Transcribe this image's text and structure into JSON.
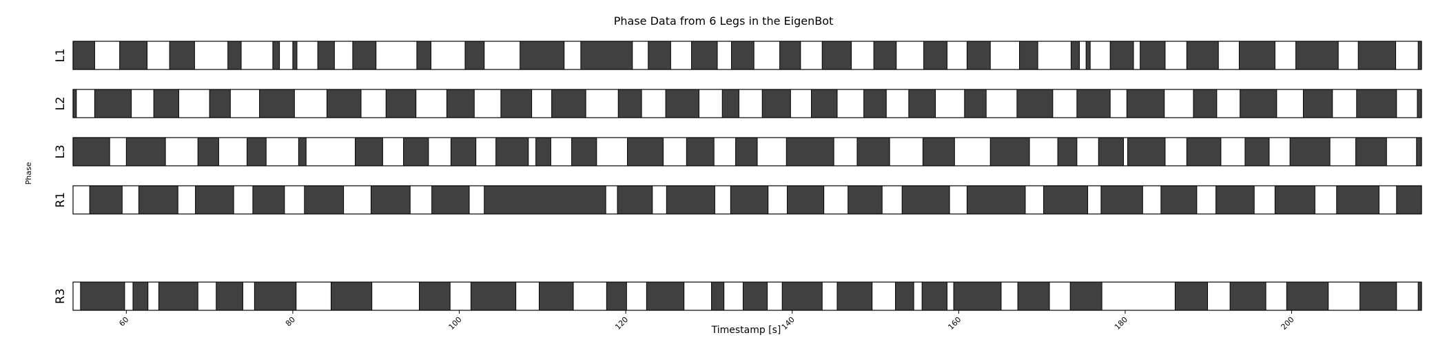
{
  "chart_data": {
    "type": "gait-phase",
    "title": "Phase Data from 6 Legs in the EigenBot",
    "xlabel": "Timestamp [s]",
    "ylabel": "Phase",
    "xlim": [
      53.6,
      215.6
    ],
    "xticks": [
      60,
      80,
      100,
      120,
      140,
      160,
      180,
      200
    ],
    "colors": {
      "dark": "#404040",
      "light": "#ffffff",
      "edge": "#000000"
    },
    "rows": [
      {
        "label": "L1",
        "slot": 0,
        "dark": [
          [
            53.6,
            56.2
          ],
          [
            59.2,
            62.5
          ],
          [
            65.2,
            68.2
          ],
          [
            72.2,
            73.8
          ],
          [
            77.6,
            78.4
          ],
          [
            80.0,
            80.5
          ],
          [
            83.0,
            85.0
          ],
          [
            87.2,
            90.0
          ],
          [
            94.9,
            96.6
          ],
          [
            100.7,
            103.0
          ],
          [
            107.3,
            112.6
          ],
          [
            114.6,
            120.8
          ],
          [
            122.7,
            125.4
          ],
          [
            127.9,
            131.0
          ],
          [
            132.7,
            135.4
          ],
          [
            138.5,
            141.0
          ],
          [
            143.6,
            147.1
          ],
          [
            149.8,
            152.5
          ],
          [
            155.8,
            158.6
          ],
          [
            161.0,
            163.8
          ],
          [
            167.3,
            169.5
          ],
          [
            173.5,
            174.5
          ],
          [
            175.3,
            175.8
          ],
          [
            178.2,
            181.0
          ],
          [
            181.8,
            184.8
          ],
          [
            187.4,
            191.2
          ],
          [
            193.7,
            198.0
          ],
          [
            200.5,
            205.6
          ],
          [
            208.0,
            212.5
          ],
          [
            215.2,
            215.6
          ]
        ]
      },
      {
        "label": "L2",
        "slot": 1,
        "dark": [
          [
            53.6,
            54.0
          ],
          [
            56.2,
            60.6
          ],
          [
            63.3,
            66.3
          ],
          [
            70.0,
            72.5
          ],
          [
            76.0,
            80.2
          ],
          [
            84.1,
            88.2
          ],
          [
            91.2,
            94.8
          ],
          [
            98.5,
            101.8
          ],
          [
            105.0,
            108.7
          ],
          [
            111.1,
            115.2
          ],
          [
            119.1,
            121.9
          ],
          [
            124.8,
            128.8
          ],
          [
            131.6,
            133.6
          ],
          [
            136.4,
            139.8
          ],
          [
            142.3,
            145.4
          ],
          [
            148.6,
            151.3
          ],
          [
            154.0,
            157.2
          ],
          [
            160.7,
            163.3
          ],
          [
            167.0,
            171.3
          ],
          [
            174.2,
            178.2
          ],
          [
            180.2,
            184.7
          ],
          [
            188.2,
            191.0
          ],
          [
            193.8,
            198.2
          ],
          [
            201.4,
            204.9
          ],
          [
            207.8,
            212.6
          ],
          [
            215.1,
            215.6
          ]
        ]
      },
      {
        "label": "L3",
        "slot": 2,
        "dark": [
          [
            53.6,
            58.0
          ],
          [
            60.0,
            64.7
          ],
          [
            68.6,
            71.1
          ],
          [
            74.5,
            76.8
          ],
          [
            80.7,
            81.6
          ],
          [
            87.5,
            90.8
          ],
          [
            93.3,
            96.3
          ],
          [
            99.0,
            102.0
          ],
          [
            104.4,
            108.3
          ],
          [
            109.2,
            111.0
          ],
          [
            113.5,
            116.5
          ],
          [
            120.2,
            124.5
          ],
          [
            127.3,
            130.6
          ],
          [
            133.2,
            135.8
          ],
          [
            139.3,
            145.0
          ],
          [
            147.8,
            151.7
          ],
          [
            155.7,
            159.5
          ],
          [
            163.8,
            168.5
          ],
          [
            171.9,
            174.2
          ],
          [
            176.8,
            179.8
          ],
          [
            180.3,
            184.8
          ],
          [
            187.4,
            191.5
          ],
          [
            194.4,
            197.3
          ],
          [
            199.8,
            204.6
          ],
          [
            207.7,
            211.4
          ],
          [
            215.0,
            215.6
          ]
        ]
      },
      {
        "label": "R1",
        "slot": 3,
        "dark": [
          [
            55.6,
            59.5
          ],
          [
            61.5,
            66.2
          ],
          [
            68.3,
            72.9
          ],
          [
            75.2,
            79.0
          ],
          [
            81.4,
            86.1
          ],
          [
            89.4,
            94.1
          ],
          [
            96.7,
            101.2
          ],
          [
            103.0,
            117.6
          ],
          [
            119.0,
            123.2
          ],
          [
            124.9,
            130.7
          ],
          [
            132.6,
            137.1
          ],
          [
            139.4,
            143.8
          ],
          [
            146.7,
            150.8
          ],
          [
            153.2,
            158.9
          ],
          [
            161.0,
            168.0
          ],
          [
            170.2,
            175.5
          ],
          [
            177.1,
            182.1
          ],
          [
            184.3,
            188.6
          ],
          [
            190.9,
            195.5
          ],
          [
            198.0,
            202.8
          ],
          [
            205.4,
            210.5
          ],
          [
            212.6,
            215.6
          ]
        ]
      },
      {
        "label": "R3",
        "slot": 5,
        "dark": [
          [
            54.5,
            59.8
          ],
          [
            60.8,
            62.6
          ],
          [
            63.9,
            68.6
          ],
          [
            70.8,
            74.0
          ],
          [
            75.4,
            80.4
          ],
          [
            84.6,
            89.5
          ],
          [
            95.2,
            98.9
          ],
          [
            101.4,
            106.8
          ],
          [
            109.6,
            113.7
          ],
          [
            117.7,
            120.1
          ],
          [
            122.5,
            127.0
          ],
          [
            130.3,
            131.8
          ],
          [
            134.1,
            137.0
          ],
          [
            138.8,
            143.6
          ],
          [
            145.4,
            149.6
          ],
          [
            152.4,
            154.6
          ],
          [
            155.6,
            158.6
          ],
          [
            159.4,
            165.1
          ],
          [
            167.1,
            170.9
          ],
          [
            173.4,
            177.2
          ],
          [
            186.0,
            189.9
          ],
          [
            192.6,
            196.9
          ],
          [
            199.4,
            204.4
          ],
          [
            208.2,
            212.6
          ],
          [
            215.2,
            215.6
          ]
        ]
      }
    ]
  }
}
